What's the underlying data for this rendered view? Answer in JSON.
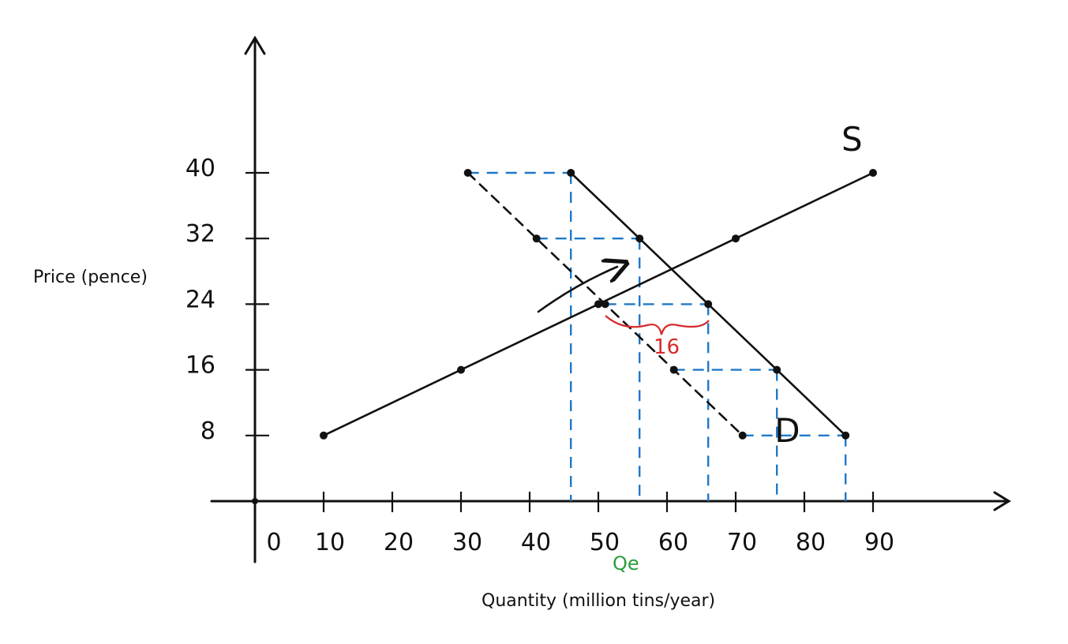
{
  "chart_data": {
    "type": "line",
    "xlabel": "Quantity (million tins/year)",
    "ylabel": "Price (pence)",
    "x_ticks": [
      "0",
      "10",
      "20",
      "30",
      "40",
      "50",
      "60",
      "70",
      "80",
      "90"
    ],
    "y_ticks": [
      "8",
      "16",
      "24",
      "32",
      "40"
    ],
    "xlim": [
      0,
      90
    ],
    "ylim": [
      0,
      40
    ],
    "series": [
      {
        "name": "S",
        "points": [
          [
            10,
            8
          ],
          [
            30,
            16
          ],
          [
            50,
            24
          ],
          [
            70,
            32
          ],
          [
            90,
            40
          ]
        ]
      },
      {
        "name": "D",
        "points": [
          [
            46,
            40
          ],
          [
            56,
            32
          ],
          [
            66,
            24
          ],
          [
            76,
            16
          ],
          [
            86,
            8
          ]
        ]
      },
      {
        "name": "",
        "points": [
          [
            31,
            40
          ],
          [
            41,
            32
          ],
          [
            51,
            24
          ],
          [
            61,
            16
          ],
          [
            71,
            8
          ]
        ]
      }
    ],
    "guides": [
      {
        "from": [
          31,
          40
        ],
        "to": [
          46,
          40
        ]
      },
      {
        "from": [
          41,
          32
        ],
        "to": [
          56,
          32
        ]
      },
      {
        "from": [
          51,
          24
        ],
        "to": [
          66,
          24
        ]
      },
      {
        "from": [
          61,
          16
        ],
        "to": [
          76,
          16
        ]
      },
      {
        "from": [
          71,
          8
        ],
        "to": [
          86,
          8
        ]
      }
    ],
    "annotations": {
      "shortage_label": "16",
      "equilibrium_quantity_label": "Qe"
    },
    "colors": {
      "guides": "#1f78c8",
      "annotation": "#d62a2a",
      "qe": "#2a9d3a"
    },
    "grid": false
  }
}
